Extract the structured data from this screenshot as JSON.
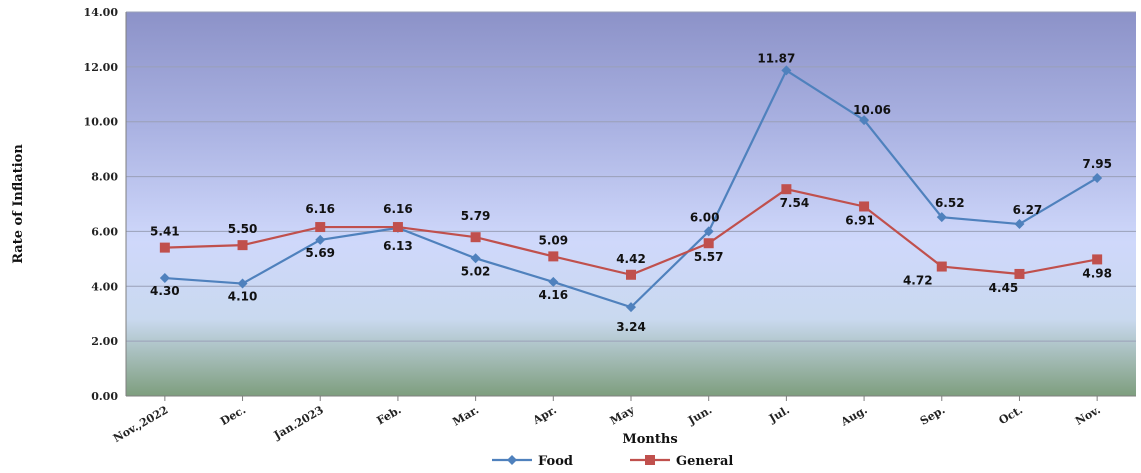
{
  "chart_data": {
    "type": "line",
    "xlabel": "Months",
    "ylabel": "Rate of Inflation",
    "ylim": [
      0,
      14
    ],
    "yticks": [
      "0.00",
      "2.00",
      "4.00",
      "6.00",
      "8.00",
      "10.00",
      "12.00",
      "14.00"
    ],
    "categories": [
      "Nov.,2022",
      "Dec.",
      "Jan.2023",
      "Feb.",
      "Mar.",
      "Apr.",
      "May",
      "Jun.",
      "Jul.",
      "Aug.",
      "Sep.",
      "Oct.",
      "Nov."
    ],
    "series": [
      {
        "name": "Food",
        "color": "#4f81bd",
        "marker": "diamond",
        "values": [
          4.3,
          4.1,
          5.69,
          6.13,
          5.02,
          4.16,
          3.24,
          6.0,
          11.87,
          10.06,
          6.52,
          6.27,
          7.95
        ],
        "labels": [
          "4.30",
          "4.10",
          "5.69",
          "6.13",
          "5.02",
          "4.16",
          "3.24",
          "6.00",
          "11.87",
          "10.06",
          "6.52",
          "6.27",
          "7.95"
        ]
      },
      {
        "name": "General",
        "color": "#c0504d",
        "marker": "square",
        "values": [
          5.41,
          5.5,
          6.16,
          6.16,
          5.79,
          5.09,
          4.42,
          5.57,
          7.54,
          6.91,
          4.72,
          4.45,
          4.98
        ],
        "labels": [
          "5.41",
          "5.50",
          "6.16",
          "6.16",
          "5.79",
          "5.09",
          "4.42",
          "5.57",
          "7.54",
          "6.91",
          "4.72",
          "4.45",
          "4.98"
        ]
      }
    ],
    "grid": true,
    "legend_position": "bottom"
  }
}
